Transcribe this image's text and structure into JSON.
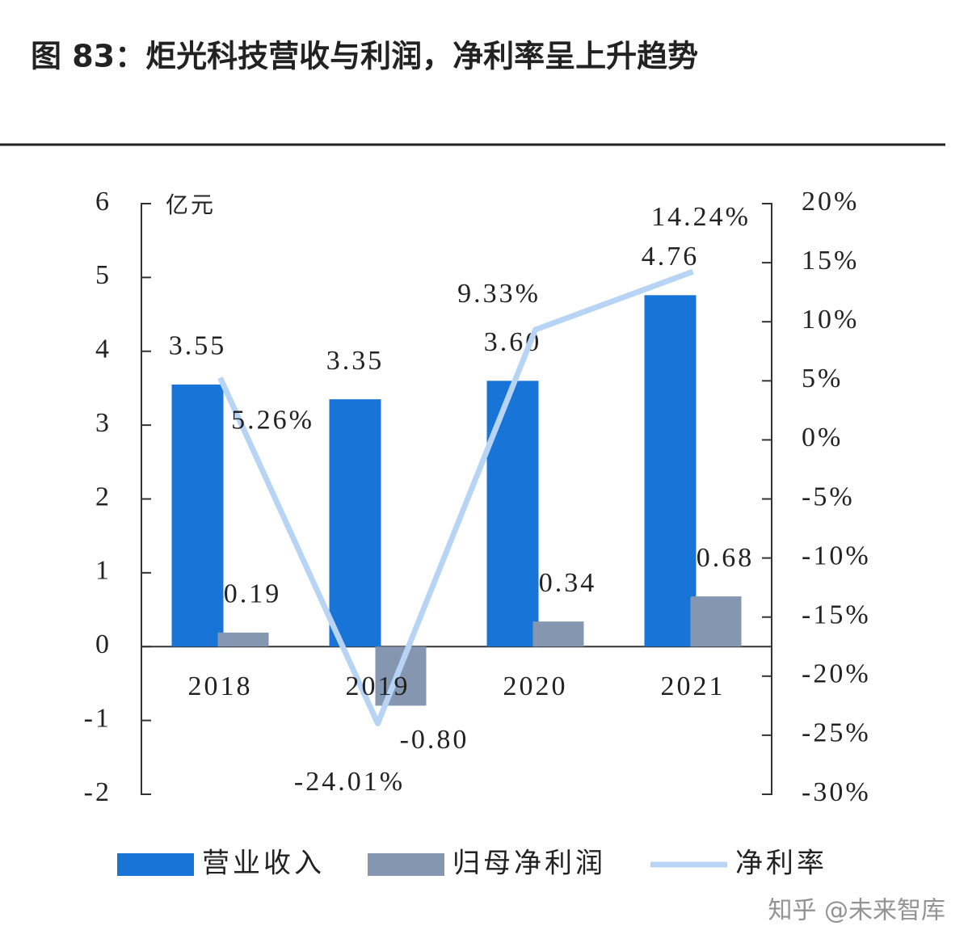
{
  "chart_data": {
    "type": "bar",
    "title": "图 83：炬光科技营收与利润，净利率呈上升趋势",
    "y_unit": "亿元",
    "watermark": "知乎 @未来智库",
    "categories": [
      "2018",
      "2019",
      "2020",
      "2021"
    ],
    "ylim": [
      -2,
      6
    ],
    "yticks": [
      -2,
      -1,
      0,
      1,
      2,
      3,
      4,
      5,
      6
    ],
    "y2lim": [
      -30,
      20
    ],
    "y2ticks": [
      {
        "value": -30,
        "label": "-30%"
      },
      {
        "value": -25,
        "label": "-25%"
      },
      {
        "value": -20,
        "label": "-20%"
      },
      {
        "value": -15,
        "label": "-15%"
      },
      {
        "value": -10,
        "label": "-10%"
      },
      {
        "value": -5,
        "label": "-5%"
      },
      {
        "value": 0,
        "label": "0%"
      },
      {
        "value": 5,
        "label": "5%"
      },
      {
        "value": 10,
        "label": "10%"
      },
      {
        "value": 15,
        "label": "15%"
      },
      {
        "value": 20,
        "label": "20%"
      }
    ],
    "series": [
      {
        "name": "营业收入",
        "type": "bar",
        "color": "#1874d6",
        "values": [
          3.55,
          3.35,
          3.6,
          4.76
        ],
        "value_labels": [
          "3.55",
          "3.35",
          "3.60",
          "4.76"
        ]
      },
      {
        "name": "归母净利润",
        "type": "bar",
        "color": "#8496b0",
        "values": [
          0.19,
          -0.8,
          0.34,
          0.68
        ],
        "value_labels": [
          "0.19",
          "-0.80",
          "0.34",
          "0.68"
        ]
      },
      {
        "name": "净利率",
        "type": "line",
        "axis": "y2",
        "color": "#b8d4f5",
        "values": [
          5.26,
          -24.01,
          9.33,
          14.24
        ],
        "value_labels": [
          "5.26%",
          "-24.01%",
          "9.33%",
          "14.24%"
        ]
      }
    ]
  }
}
